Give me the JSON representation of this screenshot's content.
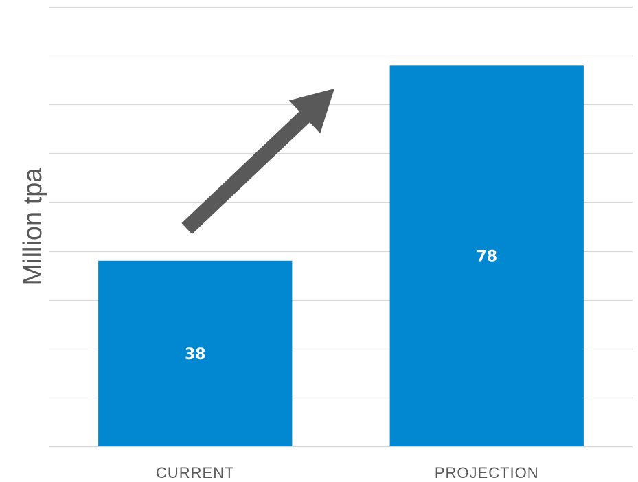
{
  "chart_data": {
    "type": "bar",
    "title": "",
    "xlabel": "",
    "ylabel": "Million tpa",
    "categories": [
      "CURRENT",
      "PROJECTION"
    ],
    "values": [
      38,
      78
    ],
    "data_labels": [
      "38",
      "78"
    ],
    "ylim": [
      0,
      90
    ],
    "grid": true,
    "legend": "none",
    "bar_color": "#0288D1",
    "gridline_color": "#D9D9D9",
    "annotation": "upward-trend-arrow",
    "annotation_color": "#595959"
  }
}
